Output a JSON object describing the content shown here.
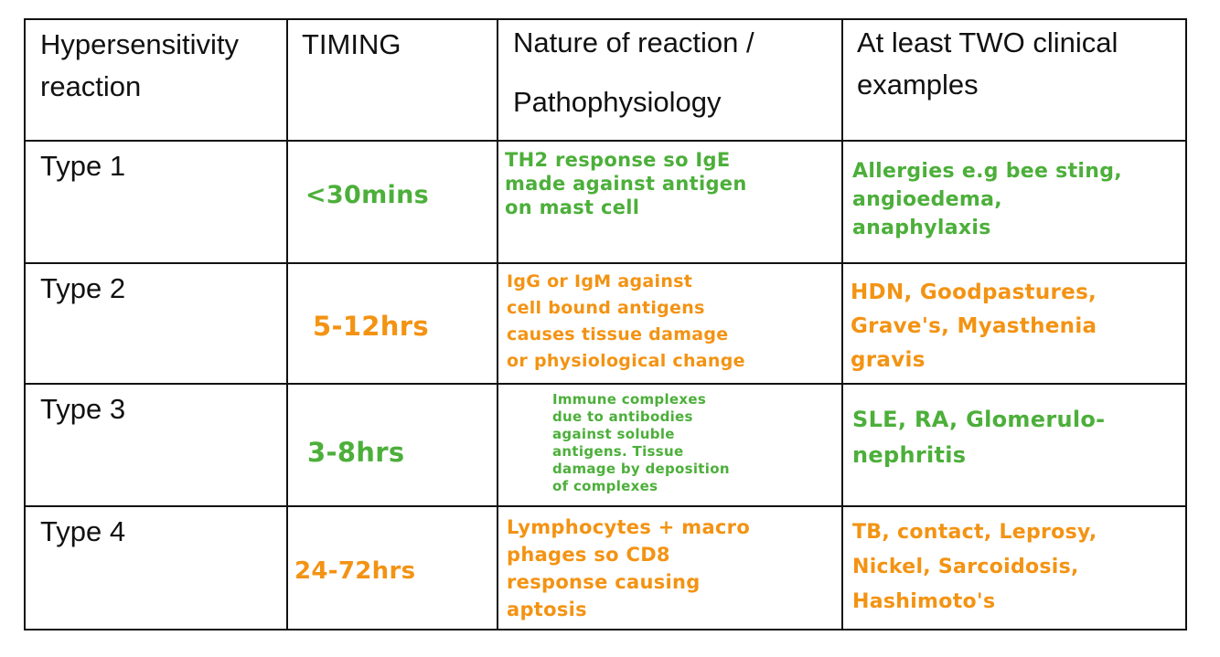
{
  "colors": {
    "green": "#4caf3a",
    "orange": "#f39313",
    "border": "#111111"
  },
  "headers": {
    "col1": "Hypersensitivity\nreaction",
    "col2": "TIMING",
    "col3_line1": "Nature of reaction /",
    "col3_line2": "Pathophysiology",
    "col4": "At least TWO clinical\nexamples"
  },
  "rows": [
    {
      "label": "Type 1",
      "timing": "<30mins",
      "nature": "TH2 response so IgE\nmade against antigen\non mast cell",
      "examples": "Allergies e.g bee sting,\nangioedema,\n      anaphylaxis",
      "color": "green"
    },
    {
      "label": "Type 2",
      "timing": "5-12hrs",
      "nature": "IgG or IgM against\ncell bound antigens\ncauses tissue damage\nor physiological change",
      "examples": "HDN, Goodpastures,\nGrave's, Myasthenia\n   gravis",
      "color": "orange"
    },
    {
      "label": "Type 3",
      "timing": "3-8hrs",
      "nature": "Immune complexes\ndue to antibodies\nagainst soluble\nantigens. Tissue\ndamage by deposition\nof complexes",
      "examples": "SLE, RA, Glomerulo-\nnephritis",
      "color": "green"
    },
    {
      "label": "Type 4",
      "timing": "24-72hrs",
      "nature": "Lymphocytes + macro\nphages so CD8\nresponse causing\n   aptosis",
      "examples": "TB, contact, Leprosy,\nNickel, Sarcoidosis,\nHashimoto's",
      "color": "orange"
    }
  ]
}
